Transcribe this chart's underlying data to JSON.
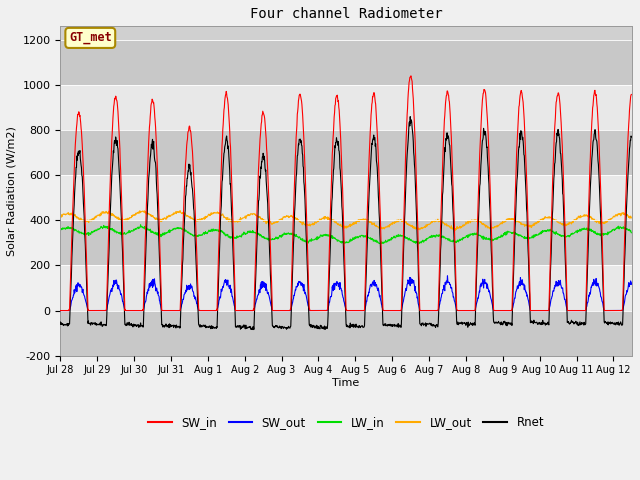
{
  "title": "Four channel Radiometer",
  "xlabel": "Time",
  "ylabel": "Solar Radiation (W/m2)",
  "ylim": [
    -200,
    1260
  ],
  "yticks": [
    -200,
    0,
    200,
    400,
    600,
    800,
    1000,
    1200
  ],
  "colors": {
    "SW_in": "#ff0000",
    "SW_out": "#0000ff",
    "LW_in": "#00dd00",
    "LW_out": "#ffaa00",
    "Rnet": "#000000"
  },
  "annotation_text": "GT_met",
  "annotation_border_color": "#aa8800",
  "annotation_face_color": "#ffffcc",
  "annotation_text_color": "#880000",
  "fig_bg_color": "#f0f0f0",
  "plot_bg_color": "#d0d0d0",
  "xtick_labels": [
    "Jul 28",
    "Jul 29",
    "Jul 30",
    "Jul 31",
    "Aug 1",
    "Aug 2",
    "Aug 3",
    "Aug 4",
    "Aug 5",
    "Aug 6",
    "Aug 7",
    "Aug 8",
    "Aug 9",
    "Aug 10",
    "Aug 11",
    "Aug 12"
  ],
  "linewidth": 0.8,
  "day_peaks": [
    880,
    950,
    935,
    810,
    960,
    875,
    960,
    955,
    960,
    1040,
    970,
    980,
    970,
    965,
    970,
    960
  ],
  "lw_in_mean": 335,
  "lw_out_mean": 400
}
